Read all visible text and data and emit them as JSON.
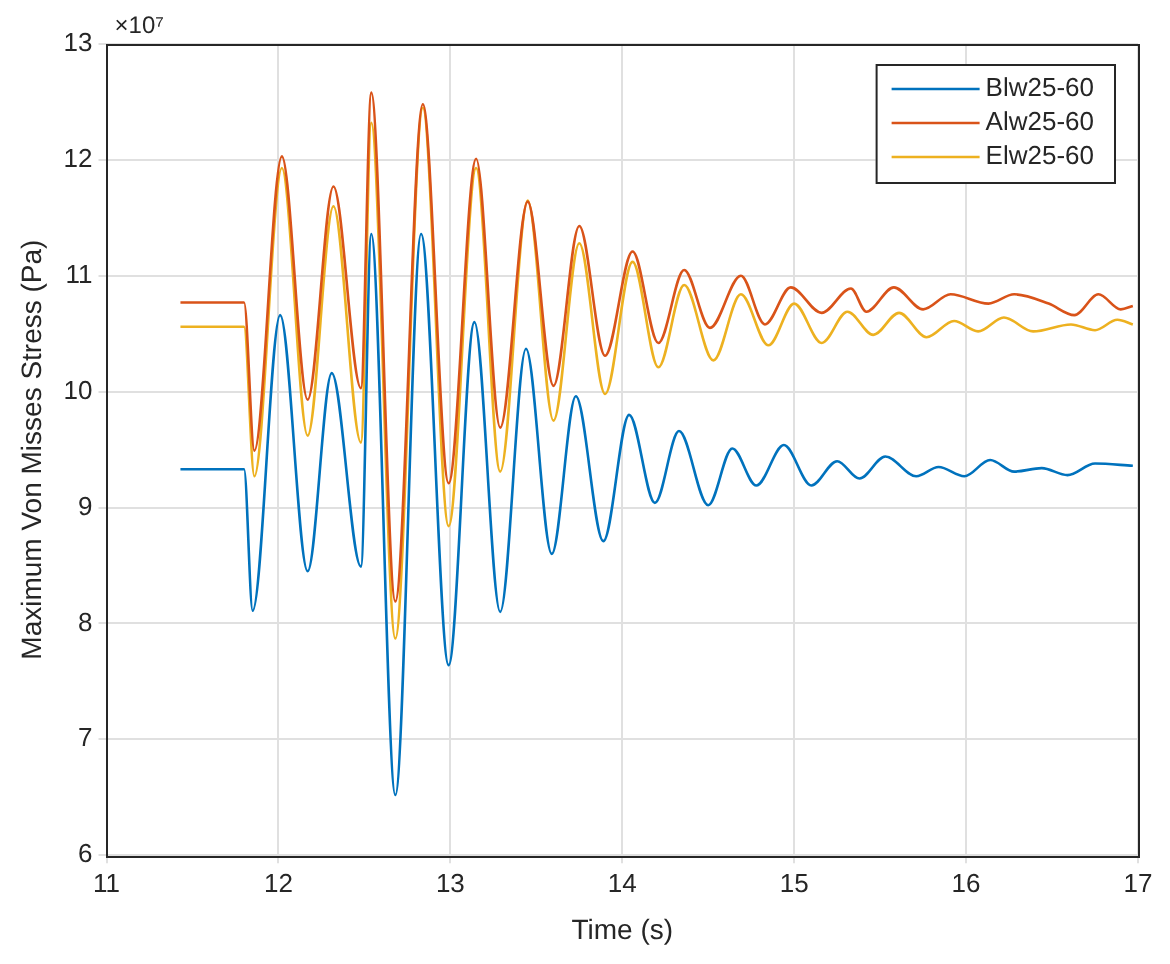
{
  "chart_data": {
    "type": "line",
    "xlabel": "Time (s)",
    "ylabel": "Maximum Von Misses Stress (Pa)",
    "annotations": [
      "×10⁷"
    ],
    "xlim": [
      11,
      17
    ],
    "xticks": [
      11,
      12,
      13,
      14,
      15,
      16,
      17
    ],
    "ylim": [
      6,
      13
    ],
    "yticks": [
      6,
      7,
      8,
      9,
      10,
      11,
      12,
      13
    ],
    "grid": true,
    "legend": "top right",
    "marker": "none",
    "line_style": "solid",
    "series": [
      {
        "name": "Blw25-60",
        "color": "#0072bd",
        "x": [
          11.43,
          11.8,
          11.85,
          12.01,
          12.17,
          12.31,
          12.48,
          12.54,
          12.68,
          12.83,
          12.99,
          13.14,
          13.29,
          13.44,
          13.59,
          13.73,
          13.89,
          14.04,
          14.19,
          14.33,
          14.5,
          14.64,
          14.78,
          14.94,
          15.1,
          15.25,
          15.38,
          15.53,
          15.71,
          15.84,
          15.99,
          16.14,
          16.28,
          16.44,
          16.59,
          16.75,
          16.97
        ],
        "values": [
          9.33,
          9.33,
          8.11,
          10.66,
          8.45,
          10.16,
          8.49,
          11.36,
          6.52,
          11.36,
          7.64,
          10.6,
          8.1,
          10.37,
          8.6,
          9.96,
          8.71,
          9.8,
          9.04,
          9.66,
          9.02,
          9.51,
          9.19,
          9.54,
          9.19,
          9.4,
          9.25,
          9.44,
          9.27,
          9.35,
          9.27,
          9.41,
          9.31,
          9.34,
          9.28,
          9.38,
          9.36
        ]
      },
      {
        "name": "Alw25-60",
        "color": "#d95319",
        "x": [
          11.43,
          11.8,
          11.86,
          12.02,
          12.17,
          12.32,
          12.48,
          12.54,
          12.68,
          12.84,
          12.99,
          13.15,
          13.29,
          13.45,
          13.6,
          13.75,
          13.9,
          14.06,
          14.21,
          14.36,
          14.51,
          14.69,
          14.83,
          14.98,
          15.16,
          15.33,
          15.42,
          15.58,
          15.75,
          15.91,
          16.13,
          16.28,
          16.48,
          16.63,
          16.77,
          16.9,
          16.97
        ],
        "values": [
          10.77,
          10.77,
          9.49,
          12.03,
          9.93,
          11.77,
          10.03,
          12.58,
          8.19,
          12.48,
          9.21,
          12.01,
          9.69,
          11.64,
          10.05,
          11.43,
          10.31,
          11.21,
          10.42,
          11.05,
          10.55,
          11.0,
          10.58,
          10.9,
          10.68,
          10.89,
          10.69,
          10.9,
          10.71,
          10.84,
          10.76,
          10.84,
          10.76,
          10.66,
          10.84,
          10.71,
          10.74
        ]
      },
      {
        "name": "Elw25-60",
        "color": "#edb120",
        "x": [
          11.43,
          11.8,
          11.86,
          12.02,
          12.17,
          12.32,
          12.48,
          12.54,
          12.68,
          12.84,
          12.99,
          13.15,
          13.29,
          13.45,
          13.6,
          13.75,
          13.9,
          14.06,
          14.21,
          14.36,
          14.53,
          14.69,
          14.85,
          15.0,
          15.16,
          15.31,
          15.46,
          15.61,
          15.77,
          15.93,
          16.07,
          16.22,
          16.39,
          16.61,
          16.75,
          16.88,
          16.97
        ],
        "values": [
          10.56,
          10.56,
          9.27,
          11.93,
          9.62,
          11.6,
          9.56,
          12.32,
          7.87,
          12.45,
          8.84,
          11.93,
          9.31,
          11.65,
          9.75,
          11.28,
          9.98,
          11.12,
          10.21,
          10.92,
          10.27,
          10.84,
          10.4,
          10.76,
          10.42,
          10.69,
          10.49,
          10.68,
          10.47,
          10.61,
          10.52,
          10.64,
          10.52,
          10.58,
          10.53,
          10.62,
          10.58
        ]
      }
    ]
  }
}
